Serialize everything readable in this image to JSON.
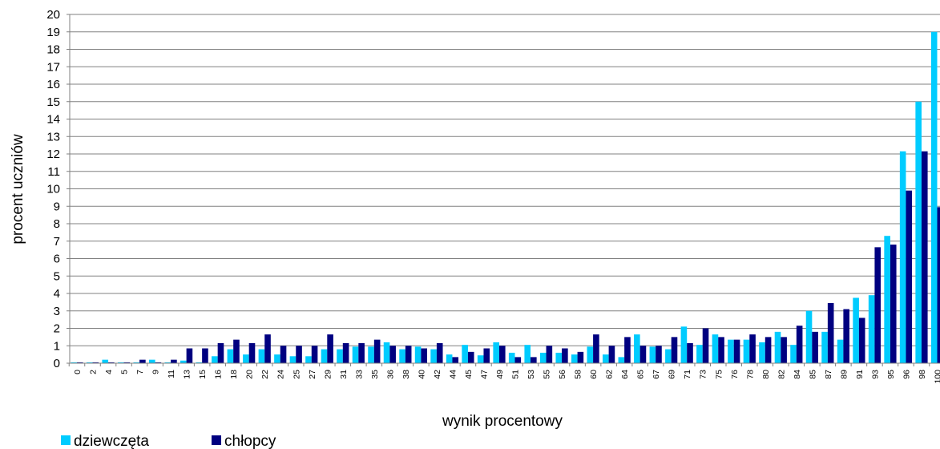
{
  "chart_data": {
    "type": "bar",
    "title": "",
    "xlabel": "wynik procentowy",
    "ylabel": "procent uczniów",
    "ylim": [
      0,
      20
    ],
    "yticks": [
      0,
      1,
      2,
      3,
      4,
      5,
      6,
      7,
      8,
      9,
      10,
      11,
      12,
      13,
      14,
      15,
      16,
      17,
      18,
      19,
      20
    ],
    "grid": true,
    "legend": "bottom-left",
    "categories": [
      "0",
      "2",
      "4",
      "5",
      "7",
      "9",
      "11",
      "13",
      "15",
      "16",
      "18",
      "20",
      "22",
      "24",
      "25",
      "27",
      "29",
      "31",
      "33",
      "35",
      "36",
      "38",
      "40",
      "42",
      "44",
      "45",
      "47",
      "49",
      "51",
      "53",
      "55",
      "56",
      "58",
      "60",
      "62",
      "64",
      "65",
      "67",
      "69",
      "71",
      "73",
      "75",
      "76",
      "78",
      "80",
      "82",
      "84",
      "85",
      "87",
      "89",
      "91",
      "93",
      "95",
      "96",
      "98",
      "100"
    ],
    "series": [
      {
        "name": "dziewczęta",
        "color": "#00ccff",
        "values": [
          0.05,
          0.05,
          0.2,
          0.05,
          0.05,
          0.2,
          0.05,
          0.15,
          0.05,
          0.4,
          0.8,
          0.5,
          0.8,
          0.5,
          0.4,
          0.4,
          0.8,
          0.8,
          0.95,
          0.95,
          1.2,
          0.8,
          0.95,
          0.8,
          0.5,
          1.05,
          0.45,
          1.2,
          0.6,
          1.05,
          0.6,
          0.6,
          0.5,
          0.95,
          0.5,
          0.35,
          1.65,
          0.95,
          0.8,
          2.1,
          1.05,
          1.65,
          1.35,
          1.35,
          1.2,
          1.8,
          1.05,
          3.0,
          1.8,
          1.35,
          3.75,
          3.9,
          7.3,
          12.15,
          15.0,
          19.0
        ]
      },
      {
        "name": "chłopcy",
        "color": "#000080",
        "values": [
          0.05,
          0.05,
          0.05,
          0.05,
          0.2,
          0.05,
          0.2,
          0.85,
          0.85,
          1.15,
          1.35,
          1.15,
          1.65,
          1.0,
          1.0,
          1.0,
          1.65,
          1.15,
          1.15,
          1.35,
          1.0,
          1.0,
          0.85,
          1.15,
          0.35,
          0.65,
          0.85,
          1.0,
          0.35,
          0.35,
          1.0,
          0.85,
          0.65,
          1.65,
          1.0,
          1.5,
          1.0,
          1.0,
          1.5,
          1.15,
          2.0,
          1.5,
          1.35,
          1.65,
          1.5,
          1.5,
          2.15,
          1.8,
          3.45,
          3.1,
          2.6,
          6.65,
          6.8,
          9.9,
          12.15,
          8.95
        ]
      }
    ]
  }
}
